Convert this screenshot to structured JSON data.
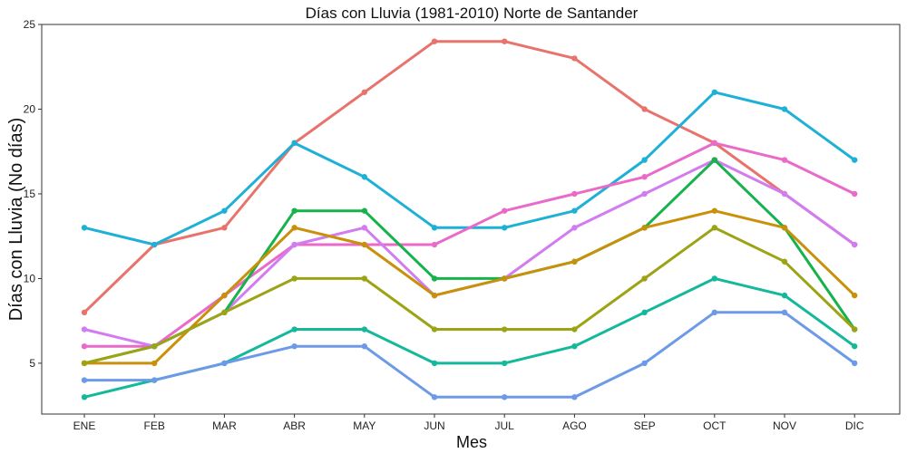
{
  "chart_data": {
    "type": "line",
    "title": "Días con Lluvia (1981-2010)  Norte de Santander",
    "xlabel": "Mes",
    "ylabel": "Días con Lluvia (No días)",
    "categories": [
      "ENE",
      "FEB",
      "MAR",
      "ABR",
      "MAY",
      "JUN",
      "JUL",
      "AGO",
      "SEP",
      "OCT",
      "NOV",
      "DIC"
    ],
    "ylim": [
      2,
      25
    ],
    "yticks": [
      5,
      10,
      15,
      20,
      25
    ],
    "grid": false,
    "legend": "none",
    "series": [
      {
        "color": "#e8736c",
        "values": [
          8,
          12,
          13,
          18,
          21,
          24,
          24,
          23,
          20,
          18,
          15,
          12
        ]
      },
      {
        "color": "#1fb0d6",
        "values": [
          13,
          12,
          14,
          18,
          16,
          13,
          13,
          14,
          17,
          21,
          20,
          17
        ]
      },
      {
        "color": "#e96ac8",
        "values": [
          6,
          6,
          9,
          12,
          12,
          12,
          14,
          15,
          16,
          18,
          17,
          15
        ]
      },
      {
        "color": "#d17cf0",
        "values": [
          7,
          6,
          8,
          12,
          13,
          9,
          10,
          13,
          15,
          17,
          15,
          12
        ]
      },
      {
        "color": "#16b24b",
        "values": [
          5,
          6,
          8,
          14,
          14,
          10,
          10,
          11,
          13,
          17,
          13,
          7
        ]
      },
      {
        "color": "#c9900a",
        "values": [
          5,
          5,
          9,
          13,
          12,
          9,
          10,
          11,
          13,
          14,
          13,
          9
        ]
      },
      {
        "color": "#9ca315",
        "values": [
          5,
          6,
          8,
          10,
          10,
          7,
          7,
          7,
          10,
          13,
          11,
          7
        ]
      },
      {
        "color": "#14b89a",
        "values": [
          3,
          4,
          5,
          7,
          7,
          5,
          5,
          6,
          8,
          10,
          9,
          6
        ]
      },
      {
        "color": "#6c9ae8",
        "values": [
          4,
          4,
          5,
          6,
          6,
          3,
          3,
          3,
          5,
          8,
          8,
          5
        ]
      }
    ]
  }
}
